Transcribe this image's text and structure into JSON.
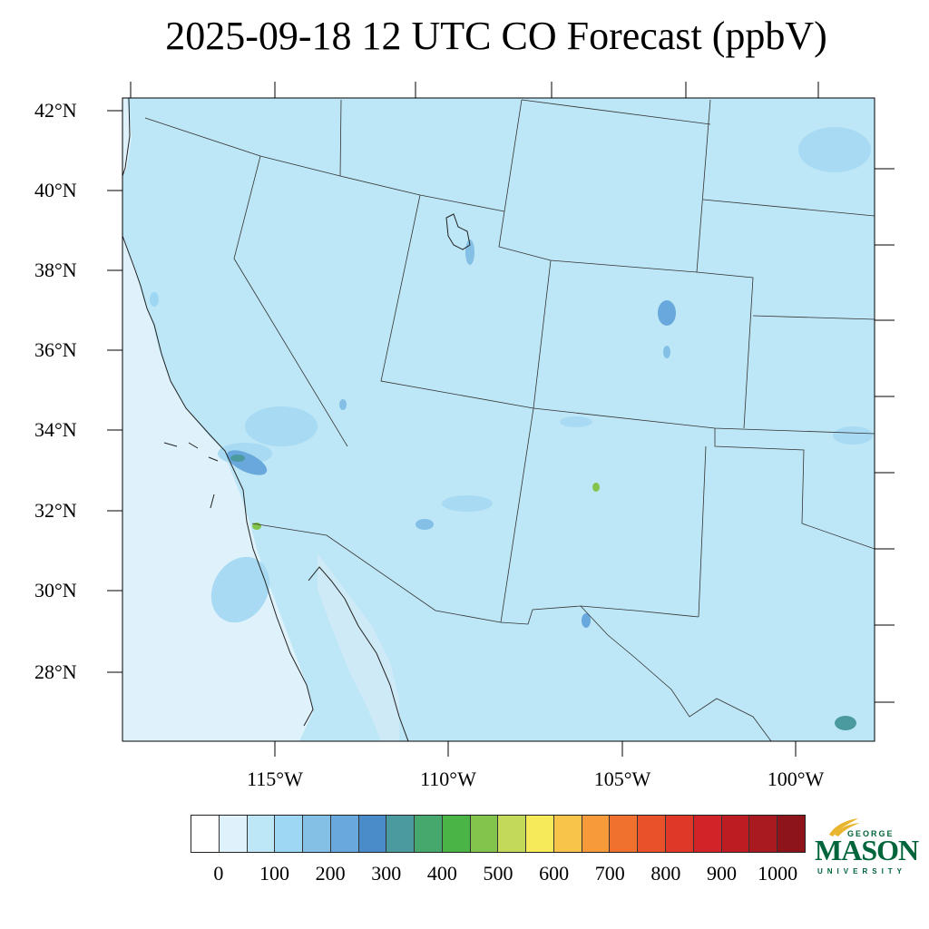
{
  "title": "2025-09-18 12 UTC CO Forecast (ppbV)",
  "chart_data": {
    "type": "heatmap",
    "title": "2025-09-18 12 UTC CO Forecast (ppbV)",
    "units": "ppbV",
    "lat_range": [
      26.3,
      42.3
    ],
    "lon_range": [
      -119.3,
      -98.1
    ],
    "lat_ticks": [
      "42°N",
      "40°N",
      "38°N",
      "36°N",
      "34°N",
      "32°N",
      "30°N",
      "28°N"
    ],
    "lat_tick_values": [
      42,
      40,
      38,
      36,
      34,
      32,
      30,
      28
    ],
    "lon_ticks": [
      "115°W",
      "110°W",
      "105°W",
      "100°W"
    ],
    "lon_tick_values": [
      -115,
      -110,
      -105,
      -100
    ],
    "background_level": "50-100",
    "hotspots": [
      {
        "lat": 33.4,
        "lon": -115.8,
        "level": "300-400"
      },
      {
        "lat": 31.6,
        "lon": -115.5,
        "level": "500-550"
      },
      {
        "lat": 32.6,
        "lon": -105.7,
        "level": "500-550"
      },
      {
        "lat": 40.2,
        "lon": -109.5,
        "level": "200-300"
      },
      {
        "lat": 36.8,
        "lon": -103.6,
        "level": "250-300"
      },
      {
        "lat": 29.4,
        "lon": -106.0,
        "level": "250-300"
      },
      {
        "lat": 26.7,
        "lon": -98.3,
        "level": "350-400"
      }
    ],
    "colorbar": {
      "colors": [
        "#ffffff",
        "#dff2fb",
        "#bde6f6",
        "#9dd7f3",
        "#84bfe6",
        "#68a8dc",
        "#4a8cca",
        "#4a9aa0",
        "#47a86d",
        "#4ab546",
        "#82c44c",
        "#c3d95a",
        "#f6e95a",
        "#f8c44a",
        "#f69a3a",
        "#f0702e",
        "#e8512a",
        "#e03828",
        "#d22428",
        "#bc1c22",
        "#a81a20",
        "#8e141b"
      ],
      "tick_labels": [
        "0",
        "100",
        "200",
        "300",
        "400",
        "500",
        "600",
        "700",
        "800",
        "900",
        "1000"
      ],
      "tick_values": [
        0,
        100,
        200,
        300,
        400,
        500,
        600,
        700,
        800,
        900,
        1000
      ],
      "min": 0,
      "max": 1000,
      "step": 50
    }
  },
  "logo": {
    "top_text": "GEORGE",
    "main_text": "MASON",
    "bottom_text": "UNIVERSITY",
    "color": "#00653a",
    "accent_color": "#e9b52e"
  }
}
